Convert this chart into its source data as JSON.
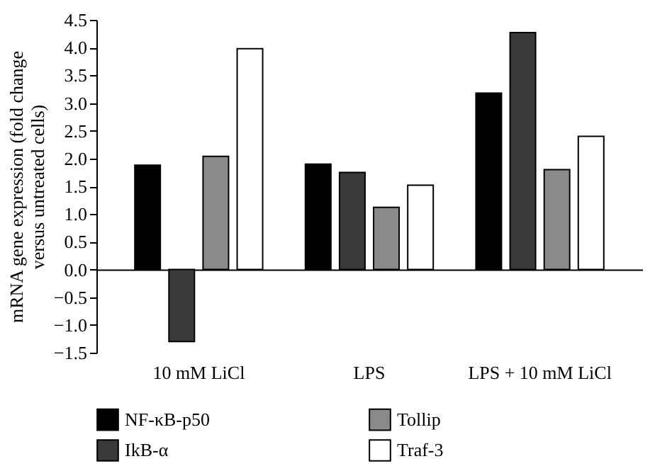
{
  "chart_data": {
    "type": "bar",
    "ylabel": "mRNA gene expression (fold change versus untreated cells)",
    "categories": [
      "10 mM LiCl",
      "LPS",
      "LPS + 10 mM LiCl"
    ],
    "series": [
      {
        "name": "NF-κB-p50",
        "color": "#000000",
        "values": [
          1.88,
          1.9,
          3.18
        ]
      },
      {
        "name": "IkB-α",
        "color": "#3a3a3a",
        "values": [
          -1.3,
          1.75,
          4.27
        ]
      },
      {
        "name": "Tollip",
        "color": "#8a8a8a",
        "values": [
          2.04,
          1.12,
          1.8
        ]
      },
      {
        "name": "Traf-3",
        "color": "#ffffff",
        "values": [
          3.98,
          1.52,
          2.4
        ]
      }
    ],
    "ylim": [
      -1.5,
      4.5
    ],
    "yticks": [
      -1.5,
      {
        "value": -1,
        "label": "−1.0"
      },
      -0.5,
      {
        "value": 0,
        "label": "0.0"
      },
      0.5,
      {
        "value": 1,
        "label": "1.0"
      },
      1.5,
      {
        "value": 2,
        "label": "2.0"
      },
      2.5,
      {
        "value": 3,
        "label": "3.0"
      },
      3.5,
      {
        "value": 4,
        "label": "4.0"
      },
      4.5
    ],
    "legend": "bottom"
  }
}
